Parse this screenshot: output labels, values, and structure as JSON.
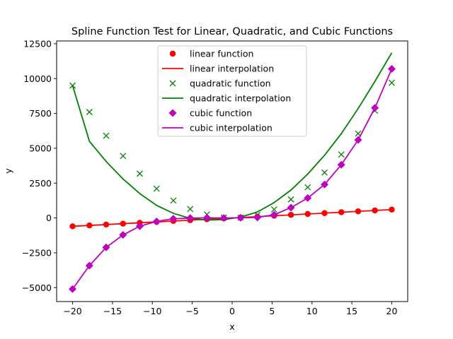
{
  "chart_data": {
    "type": "line",
    "title": "Spline Function Test for Linear, Quadratic, and Cubic Functions",
    "xlabel": "x",
    "ylabel": "y",
    "xlim": [
      -22,
      22
    ],
    "ylim": [
      -6000,
      12700
    ],
    "xticks": [
      -20,
      -15,
      -10,
      -5,
      0,
      5,
      10,
      15,
      20
    ],
    "yticks": [
      -5000,
      -2500,
      0,
      2500,
      5000,
      7500,
      10000,
      12500
    ],
    "grid": false,
    "legend_position": "top-center",
    "sample_x": [
      -20,
      -17.89,
      -15.79,
      -13.68,
      -11.58,
      -9.47,
      -7.37,
      -5.26,
      -3.16,
      -1.05,
      1.05,
      3.16,
      5.26,
      7.37,
      9.47,
      11.58,
      13.68,
      15.79,
      17.89,
      20
    ],
    "series": [
      {
        "name": "linear function",
        "kind": "markers",
        "marker": "circle",
        "color": "#ff0000",
        "values": [
          -600,
          -537,
          -474,
          -411,
          -347,
          -284,
          -221,
          -158,
          -95,
          -32,
          32,
          95,
          158,
          221,
          284,
          347,
          411,
          474,
          537,
          600
        ]
      },
      {
        "name": "linear interpolation",
        "kind": "line",
        "color": "#ff0000",
        "values": [
          -600,
          -537,
          -474,
          -411,
          -347,
          -284,
          -221,
          -158,
          -95,
          -32,
          32,
          95,
          158,
          221,
          284,
          347,
          411,
          474,
          537,
          600
        ]
      },
      {
        "name": "quadratic function",
        "kind": "markers",
        "marker": "x",
        "color": "#008000",
        "values": [
          9500,
          7600,
          5900,
          4450,
          3180,
          2100,
          1250,
          640,
          250,
          30,
          20,
          210,
          610,
          1330,
          2200,
          3260,
          4550,
          6050,
          7700,
          9700
        ]
      },
      {
        "name": "quadratic interpolation",
        "kind": "line",
        "color": "#008000",
        "values": [
          9500,
          5500,
          4050,
          2800,
          1750,
          900,
          330,
          -30,
          -150,
          -120,
          60,
          430,
          1100,
          2000,
          3150,
          4500,
          6050,
          7850,
          9800,
          11850
        ]
      },
      {
        "name": "cubic function",
        "kind": "markers",
        "marker": "diamond",
        "color": "#bf00bf",
        "values": [
          -5100,
          -3420,
          -2110,
          -1220,
          -590,
          -250,
          -60,
          -10,
          10,
          0,
          10,
          40,
          230,
          740,
          1430,
          2400,
          3820,
          5600,
          7900,
          10700
        ]
      },
      {
        "name": "cubic interpolation",
        "kind": "line",
        "color": "#bf00bf",
        "values": [
          -5100,
          -3420,
          -2110,
          -1220,
          -590,
          -250,
          -60,
          -10,
          10,
          0,
          10,
          40,
          230,
          740,
          1430,
          2400,
          3820,
          5600,
          7900,
          10700
        ]
      }
    ]
  }
}
